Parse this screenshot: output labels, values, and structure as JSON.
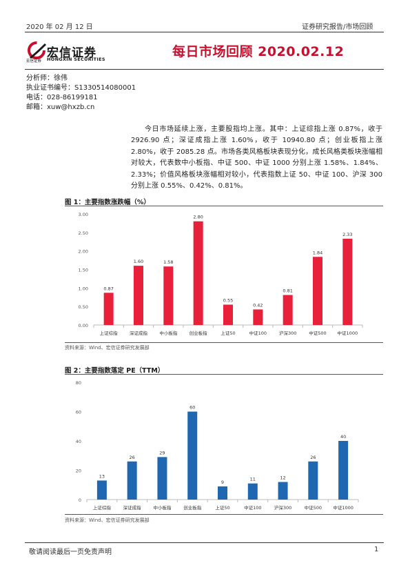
{
  "header": {
    "date": "2020 年 02 月 12 日",
    "category": "证券研究报告/市场回顾",
    "logo_cn": "宏信证券",
    "logo_en": "HONGXIN SECURITIES",
    "logo_small": "宏信证券",
    "title": "每日市场回顾 2020.02.12"
  },
  "analyst": {
    "name_line": "分析师：徐伟",
    "license_line": "执业证书编号：S1330514080001",
    "phone_line": "电话：028-86199181",
    "email_line": "邮箱：xuw@hxzb.cn"
  },
  "summary": "今日市场延续上涨，主要股指均上涨。其中：上证综指上涨 0.87%，收于 2926.90 点；深证成指上涨 1.60%，收于 10940.80 点；创业板指上涨 2.80%，收于 2085.28 点。市场各类风格板块表现分化，成长风格类板块涨幅相对较大，代表数中小板指、中证 500、中证 1000 分别上涨 1.58%、1.84%、2.33%；价值风格板块涨幅相对较小，代表指数上证 50、中证 100、沪深 300 分别上涨 0.55%、0.42%、0.81%。",
  "figure1": {
    "title": "图 1：主要指数涨跌幅（%）",
    "source": "资料来源：Wind、宏信证券研究发展部"
  },
  "figure2": {
    "title": "图 2：主要指数落定 PE（TTM）",
    "source": "资料来源：Wind、宏信证券研究发展部"
  },
  "chart_data": [
    {
      "type": "bar",
      "title": "主要指数涨跌幅（%）",
      "categories": [
        "上证综指",
        "深证成指",
        "中小板指",
        "创业板指",
        "上证50",
        "中证100",
        "沪深300",
        "中证500",
        "中证1000"
      ],
      "values": [
        0.87,
        1.6,
        1.58,
        2.8,
        0.55,
        0.42,
        0.81,
        1.84,
        2.33
      ],
      "value_labels": [
        "0.87",
        "1.60",
        "1.58",
        "2.80",
        "0.55",
        "0.42",
        "0.81",
        "1.84",
        "2.33"
      ],
      "ylim": [
        0,
        3.0
      ],
      "yticks": [
        "0.00",
        "0.50",
        "1.00",
        "1.50",
        "2.00",
        "2.50",
        "3.00"
      ],
      "color": "#e8203a",
      "grid": false
    },
    {
      "type": "bar",
      "title": "主要指数落定 PE（TTM）",
      "categories": [
        "上证综指",
        "深证成指",
        "中小板指",
        "创业板指",
        "上证50",
        "中证100",
        "沪深300",
        "中证500",
        "中证1000"
      ],
      "values": [
        13,
        26,
        29,
        60,
        9,
        11,
        12,
        26,
        40
      ],
      "value_labels": [
        "13",
        "26",
        "29",
        "60",
        "9",
        "11",
        "12",
        "26",
        "40"
      ],
      "ylim": [
        0,
        80
      ],
      "yticks": [
        "0",
        "20",
        "40",
        "60",
        "80"
      ],
      "color": "#1f67b1",
      "grid": false
    }
  ],
  "footer": {
    "disclaimer": "敬请阅读最后一页免责声明",
    "page": "1"
  }
}
